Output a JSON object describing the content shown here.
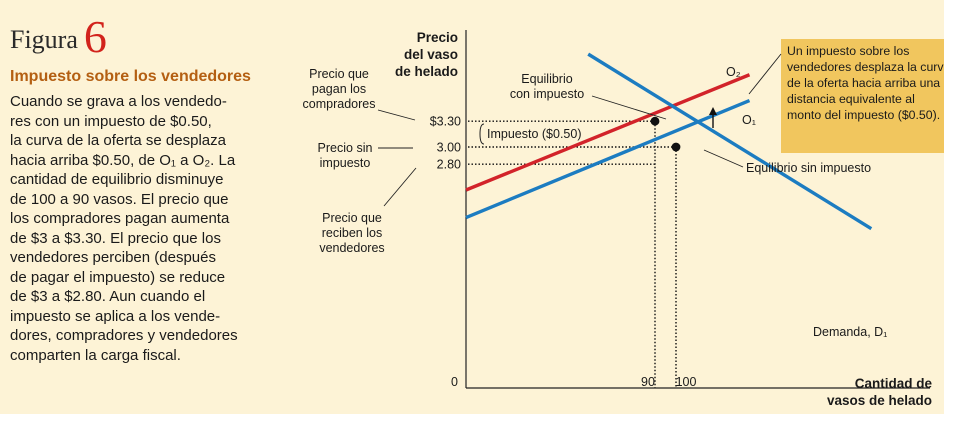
{
  "figure": {
    "word": "Figura",
    "number": "6"
  },
  "caption": {
    "heading": "Impuesto sobre los vendedores",
    "lines": [
      "Cuando se grava a los vendedo-",
      "res con un impuesto de $0.50,",
      "la curva de la oferta se desplaza",
      "hacia arriba $0.50, de O₁ a O₂. La",
      "cantidad de equilibrio disminuye",
      "de 100 a 90 vasos. El precio que",
      "los compradores pagan aumenta",
      "de $3 a $3.30. El precio que los",
      "vendedores perciben (después",
      "de pagar el impuesto) se reduce",
      "de $3 a $2.80. Aun cuando el",
      "impuesto se aplica a los vende-",
      "dores, compradores y vendedores",
      "comparten la carga fiscal."
    ]
  },
  "chart_data": {
    "type": "line",
    "ylabel": [
      "Precio",
      "del vaso",
      "de helado"
    ],
    "xlabel": [
      "Cantidad de",
      "vasos de helado"
    ],
    "origin_label": "0",
    "x_ticks": [
      {
        "value": 90,
        "label": "90"
      },
      {
        "value": 100,
        "label": "100"
      }
    ],
    "y_ticks": [
      {
        "value": 3.3,
        "label": "$3.30"
      },
      {
        "value": 3.0,
        "label": "3.00"
      },
      {
        "value": 2.8,
        "label": "2.80"
      }
    ],
    "series": [
      {
        "name": "O₂",
        "color": "#d2232a",
        "points": [
          [
            0.0,
            2.5
          ],
          [
            135.0,
            3.84
          ]
        ]
      },
      {
        "name": "O₁",
        "color": "#1c7cc1",
        "points": [
          [
            0.0,
            2.18
          ],
          [
            135.0,
            3.54
          ]
        ]
      },
      {
        "name": "Demanda, D₁",
        "color": "#1c7cc1",
        "points": [
          [
            58.2,
            4.08
          ],
          [
            193.0,
            2.05
          ]
        ]
      }
    ],
    "equilibria": [
      {
        "x": 90,
        "y": 3.3
      },
      {
        "x": 100,
        "y": 3.0
      }
    ],
    "annotations": {
      "buyers_price": [
        "Precio que",
        "pagan los",
        "compradores"
      ],
      "price_no_tax": [
        "Precio sin",
        "impuesto"
      ],
      "sellers_price": [
        "Precio que",
        "reciben los",
        "vendedores"
      ],
      "eq_with_tax": [
        "Equilibrio",
        "con impuesto"
      ],
      "eq_no_tax": "Equilibrio sin impuesto",
      "tax": "Impuesto ($0.50)",
      "callout": [
        "Un impuesto sobre los",
        "vendedores desplaza la curva",
        "de la oferta hacia arriba una",
        "distancia equivalente al",
        "monto del impuesto ($0.50)."
      ]
    },
    "colors": {
      "callout_bg": "#f1c65e",
      "panel_bg": "#fdf3d6"
    }
  }
}
